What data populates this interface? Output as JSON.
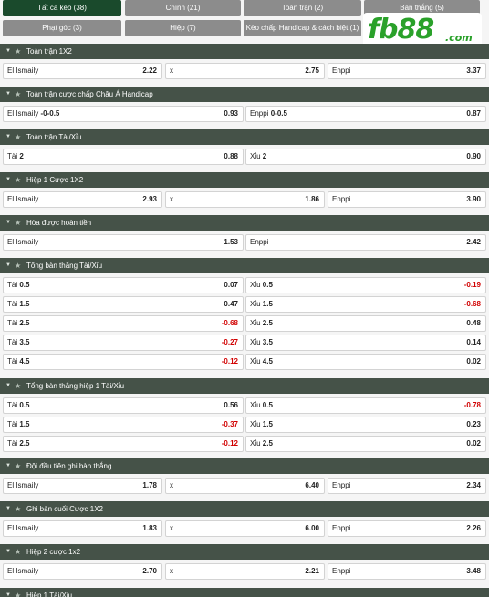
{
  "tabs": [
    {
      "label": "Tất cả kèo (38)",
      "active": true
    },
    {
      "label": "Chính (21)",
      "active": false
    },
    {
      "label": "Toàn trận (2)",
      "active": false
    },
    {
      "label": "Bàn thắng (5)",
      "active": false
    },
    {
      "label": "Phạt góc (3)",
      "active": false
    },
    {
      "label": "Hiệp (7)",
      "active": false
    },
    {
      "label": "Kèo chấp Handicap & cách biệt (1)",
      "active": false
    }
  ],
  "logo": {
    "main": "fb88",
    "suffix": ".com"
  },
  "colors": {
    "tab_active": "#1a4a2c",
    "tab_inactive": "#8c8c8c",
    "section_header": "#455248",
    "negative": "#d10000",
    "logo": "#2aa12a"
  },
  "icons": {
    "collapse": "caret-down-icon",
    "favorite": "star-icon"
  },
  "sections": [
    {
      "title": "Toàn trận 1X2",
      "rows": [
        [
          {
            "name": "El Ismaily",
            "odds": "2.22"
          },
          {
            "name": "x",
            "odds": "2.75"
          },
          {
            "name": "Enppi",
            "odds": "3.37"
          }
        ]
      ]
    },
    {
      "title": "Toàn trận cược chấp Châu Á Handicap",
      "rows": [
        [
          {
            "name": "El Ismaily",
            "line": "-0-0.5",
            "odds": "0.93"
          },
          {
            "name": "Enppi",
            "line": "0-0.5",
            "odds": "0.87"
          }
        ]
      ]
    },
    {
      "title": "Toàn trận Tài/Xỉu",
      "rows": [
        [
          {
            "name": "Tài",
            "line": "2",
            "odds": "0.88"
          },
          {
            "name": "Xỉu",
            "line": "2",
            "odds": "0.90"
          }
        ]
      ]
    },
    {
      "title": "Hiệp 1 Cược 1X2",
      "rows": [
        [
          {
            "name": "El Ismaily",
            "odds": "2.93"
          },
          {
            "name": "x",
            "odds": "1.86"
          },
          {
            "name": "Enppi",
            "odds": "3.90"
          }
        ]
      ]
    },
    {
      "title": "Hòa được hoàn tiền",
      "rows": [
        [
          {
            "name": "El Ismaily",
            "odds": "1.53"
          },
          {
            "name": "Enppi",
            "odds": "2.42"
          }
        ]
      ]
    },
    {
      "title": "Tổng bàn thắng Tài/Xỉu",
      "rows": [
        [
          {
            "name": "Tài",
            "line": "0.5",
            "odds": "0.07"
          },
          {
            "name": "Xỉu",
            "line": "0.5",
            "odds": "-0.19"
          }
        ],
        [
          {
            "name": "Tài",
            "line": "1.5",
            "odds": "0.47"
          },
          {
            "name": "Xỉu",
            "line": "1.5",
            "odds": "-0.68"
          }
        ],
        [
          {
            "name": "Tài",
            "line": "2.5",
            "odds": "-0.68"
          },
          {
            "name": "Xỉu",
            "line": "2.5",
            "odds": "0.48"
          }
        ],
        [
          {
            "name": "Tài",
            "line": "3.5",
            "odds": "-0.27"
          },
          {
            "name": "Xỉu",
            "line": "3.5",
            "odds": "0.14"
          }
        ],
        [
          {
            "name": "Tài",
            "line": "4.5",
            "odds": "-0.12"
          },
          {
            "name": "Xỉu",
            "line": "4.5",
            "odds": "0.02"
          }
        ]
      ]
    },
    {
      "title": "Tổng bàn thắng hiệp 1 Tài/Xỉu",
      "rows": [
        [
          {
            "name": "Tài",
            "line": "0.5",
            "odds": "0.56"
          },
          {
            "name": "Xỉu",
            "line": "0.5",
            "odds": "-0.78"
          }
        ],
        [
          {
            "name": "Tài",
            "line": "1.5",
            "odds": "-0.37"
          },
          {
            "name": "Xỉu",
            "line": "1.5",
            "odds": "0.23"
          }
        ],
        [
          {
            "name": "Tài",
            "line": "2.5",
            "odds": "-0.12"
          },
          {
            "name": "Xỉu",
            "line": "2.5",
            "odds": "0.02"
          }
        ]
      ]
    },
    {
      "title": "Đội đầu tiên ghi bàn thắng",
      "rows": [
        [
          {
            "name": "El Ismaily",
            "odds": "1.78"
          },
          {
            "name": "x",
            "odds": "6.40"
          },
          {
            "name": "Enppi",
            "odds": "2.34"
          }
        ]
      ]
    },
    {
      "title": "Ghi bàn cuối Cược 1X2",
      "rows": [
        [
          {
            "name": "El Ismaily",
            "odds": "1.83"
          },
          {
            "name": "x",
            "odds": "6.00"
          },
          {
            "name": "Enppi",
            "odds": "2.26"
          }
        ]
      ]
    },
    {
      "title": "Hiệp 2 cược 1x2",
      "rows": [
        [
          {
            "name": "El Ismaily",
            "odds": "2.70"
          },
          {
            "name": "x",
            "odds": "2.21"
          },
          {
            "name": "Enppi",
            "odds": "3.48"
          }
        ]
      ]
    },
    {
      "title": "Hiệp 1 Tài/Xỉu",
      "rows": []
    }
  ]
}
